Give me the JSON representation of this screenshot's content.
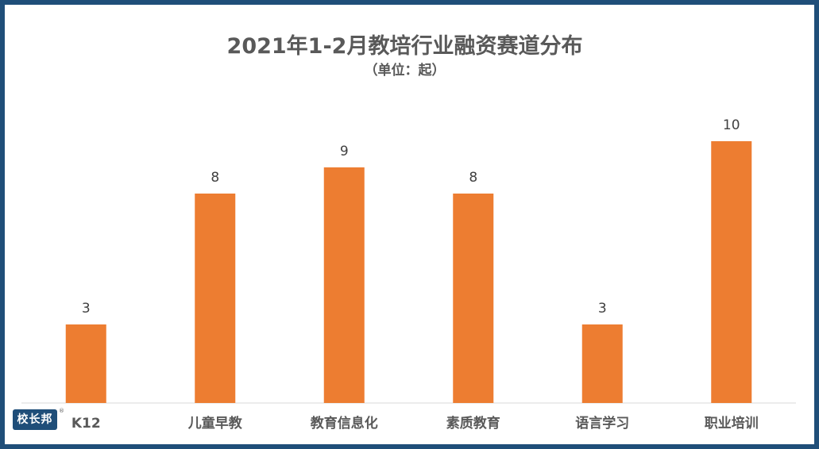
{
  "chart_data": {
    "type": "bar",
    "title": "2021年1-2月教培行业融资赛道分布",
    "subtitle": "（单位：起）",
    "categories": [
      "K12",
      "儿童早教",
      "教育信息化",
      "素质教育",
      "语言学习",
      "职业培训"
    ],
    "values": [
      3,
      8,
      9,
      8,
      3,
      10
    ],
    "ylim": [
      0,
      10
    ],
    "grid": false,
    "bar_color": "#ed7d31"
  },
  "logo": {
    "text": "校长邦",
    "mark": "®"
  },
  "colors": {
    "frame": "#1f4e79",
    "text": "#595959",
    "axis": "#d9d9d9"
  }
}
